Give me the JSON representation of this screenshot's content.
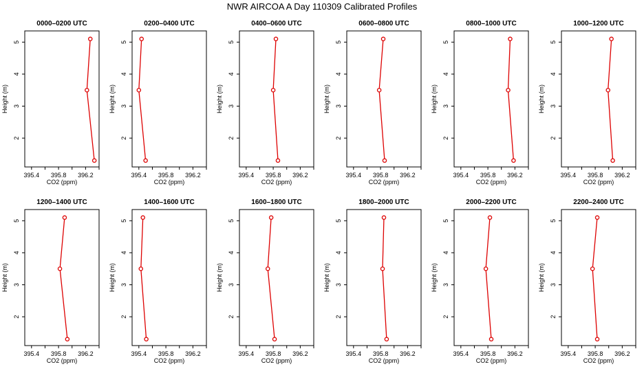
{
  "title": "NWR AIRCOA A  Day 110309  Calibrated Profiles",
  "colors": {
    "series": "#dd0000",
    "axis": "#000000",
    "background": "#ffffff"
  },
  "chart_data": {
    "type": "line",
    "xlabel": "CO2 (ppm)",
    "ylabel": "Height (m)",
    "xlim": [
      395.3,
      396.4
    ],
    "ylim": [
      1.1,
      5.35
    ],
    "x_ticks": [
      395.4,
      395.6,
      395.8,
      396.0,
      396.2,
      396.4
    ],
    "x_tick_labels": [
      "395.4",
      "",
      "395.8",
      "",
      "396.2",
      ""
    ],
    "y_ticks": [
      2,
      3,
      4,
      5
    ],
    "y_tick_labels": [
      "2",
      "3",
      "4",
      "5"
    ],
    "heights": [
      5.1,
      3.5,
      1.3
    ],
    "panels": [
      {
        "title": "0000–0200 UTC",
        "co2": [
          396.27,
          396.22,
          396.33
        ]
      },
      {
        "title": "0200–0400 UTC",
        "co2": [
          395.44,
          395.4,
          395.5
        ]
      },
      {
        "title": "0400–0600 UTC",
        "co2": [
          395.84,
          395.8,
          395.87
        ]
      },
      {
        "title": "0600–0800 UTC",
        "co2": [
          395.84,
          395.78,
          395.86
        ]
      },
      {
        "title": "0800–1000 UTC",
        "co2": [
          396.13,
          396.1,
          396.18
        ]
      },
      {
        "title": "1000–1200 UTC",
        "co2": [
          396.04,
          395.99,
          396.06
        ]
      },
      {
        "title": "1200–1400 UTC",
        "co2": [
          395.89,
          395.82,
          395.93
        ]
      },
      {
        "title": "1400–1600 UTC",
        "co2": [
          395.46,
          395.43,
          395.51
        ]
      },
      {
        "title": "1600–1800 UTC",
        "co2": [
          395.77,
          395.72,
          395.82
        ]
      },
      {
        "title": "1800–2000 UTC",
        "co2": [
          395.85,
          395.83,
          395.89
        ]
      },
      {
        "title": "2000–2200 UTC",
        "co2": [
          395.83,
          395.77,
          395.85
        ]
      },
      {
        "title": "2200–2400 UTC",
        "co2": [
          395.83,
          395.76,
          395.83
        ]
      }
    ]
  }
}
